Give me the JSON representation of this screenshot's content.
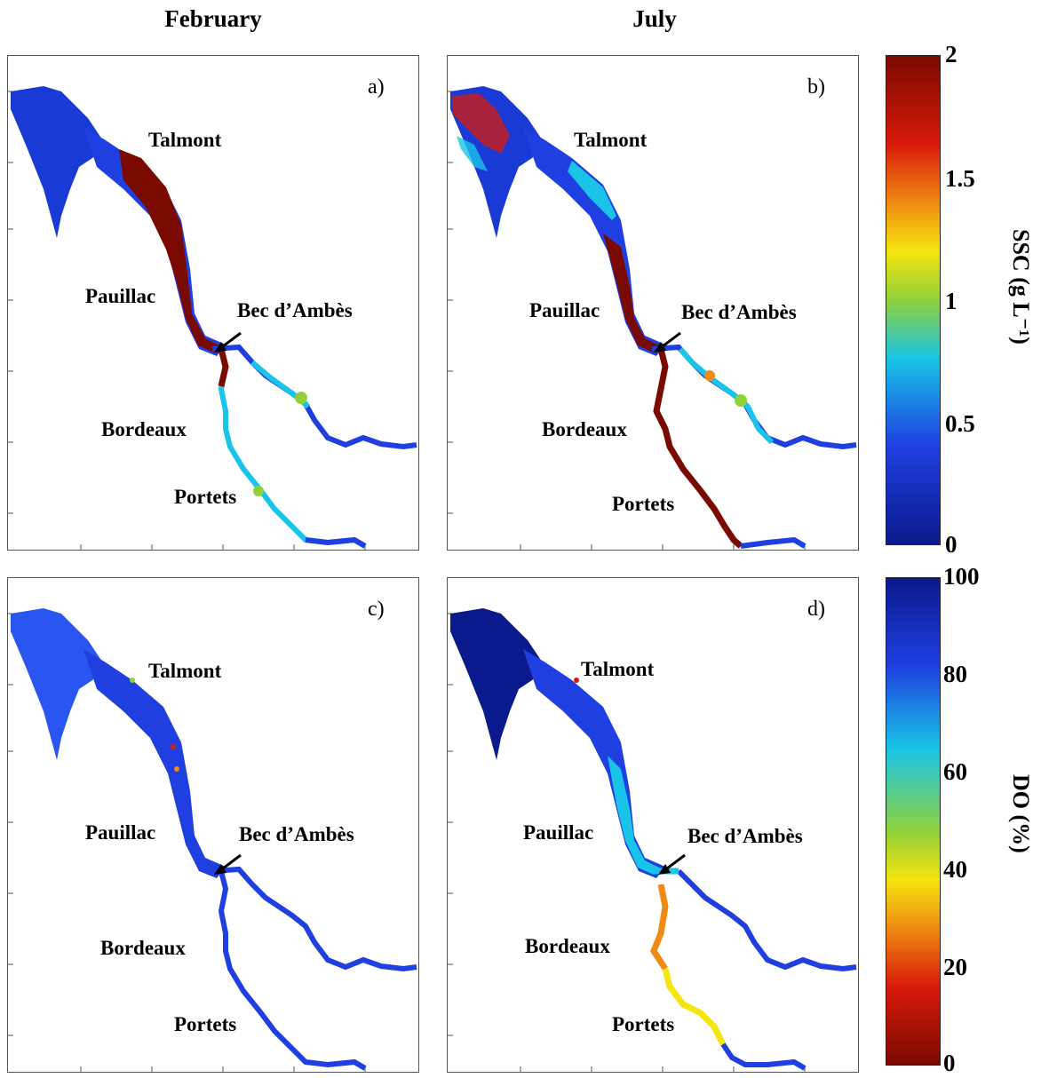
{
  "columns": [
    "February",
    "July"
  ],
  "panels": [
    {
      "label": "a)",
      "places": {
        "talmont": "Talmont",
        "pauillac": "Pauillac",
        "bec": "Bec d’Ambès",
        "bordeaux": "Bordeaux",
        "portets": "Portets"
      }
    },
    {
      "label": "b)",
      "places": {
        "talmont": "Talmont",
        "pauillac": "Pauillac",
        "bec": "Bec d’Ambès",
        "bordeaux": "Bordeaux",
        "portets": "Portets"
      }
    },
    {
      "label": "c)",
      "places": {
        "talmont": "Talmont",
        "pauillac": "Pauillac",
        "bec": "Bec d’Ambès",
        "bordeaux": "Bordeaux",
        "portets": "Portets"
      }
    },
    {
      "label": "d)",
      "places": {
        "talmont": "Talmont",
        "pauillac": "Pauillac",
        "bec": "Bec d’Ambès",
        "bordeaux": "Bordeaux",
        "portets": "Portets"
      }
    }
  ],
  "colorbars": {
    "ssc": {
      "label": "SSC (g L⁻¹)",
      "ticks": [
        "2",
        "1.5",
        "1",
        "0.5",
        "0"
      ]
    },
    "do": {
      "label": "DO (%)",
      "ticks": [
        "100",
        "80",
        "60",
        "40",
        "20",
        "0"
      ]
    }
  },
  "colors": {
    "navy": "#0a1a8c",
    "blue": "#1f3fe0",
    "cyan": "#19c4e8",
    "green": "#8fd13a",
    "yellow": "#f5e50f",
    "orange": "#f08a12",
    "red": "#d81a0a",
    "darkred": "#7a0a00"
  }
}
